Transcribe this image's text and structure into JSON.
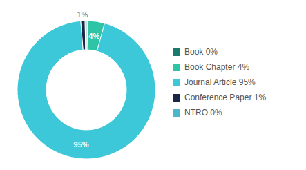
{
  "chart_data": {
    "type": "pie",
    "categories": [
      "Book 0%",
      "Book Chapter 4%",
      "Journal Article 95%",
      "Conference Paper 1%",
      "NTRO 0%"
    ],
    "values": [
      0.3,
      4,
      95,
      1,
      0.3
    ],
    "value_labels": [
      null,
      "4%",
      "95%",
      "1%",
      null
    ],
    "colors": [
      "#1a7a6e",
      "#2ec4a5",
      "#3cc8d8",
      "#1a2744",
      "#4ab8c8"
    ],
    "data_labels": true,
    "legend": "right"
  }
}
